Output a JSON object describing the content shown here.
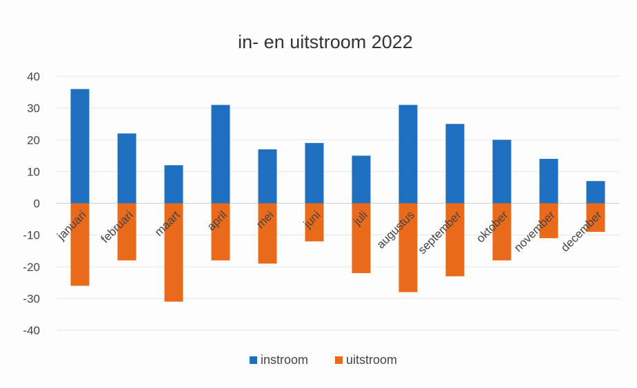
{
  "chart_data": {
    "type": "bar",
    "title": "in- en uitstroom 2022",
    "xlabel": "",
    "ylabel": "",
    "ylim": [
      -40,
      40
    ],
    "yticks": [
      40,
      30,
      20,
      10,
      0,
      -10,
      -20,
      -30,
      -40
    ],
    "grid": true,
    "legend_position": "bottom",
    "categories": [
      "januari",
      "februari",
      "maart",
      "april",
      "mei",
      "juni",
      "juli",
      "augustus",
      "september",
      "oktober",
      "november",
      "december"
    ],
    "series": [
      {
        "name": "instroom",
        "color": "#1f6fc1",
        "values": [
          36,
          22,
          12,
          31,
          17,
          19,
          15,
          31,
          25,
          20,
          14,
          7
        ]
      },
      {
        "name": "uitstroom",
        "color": "#ea6a1c",
        "values": [
          -26,
          -18,
          -31,
          -18,
          -19,
          -12,
          -22,
          -28,
          -23,
          -18,
          -11,
          -9
        ]
      }
    ]
  }
}
